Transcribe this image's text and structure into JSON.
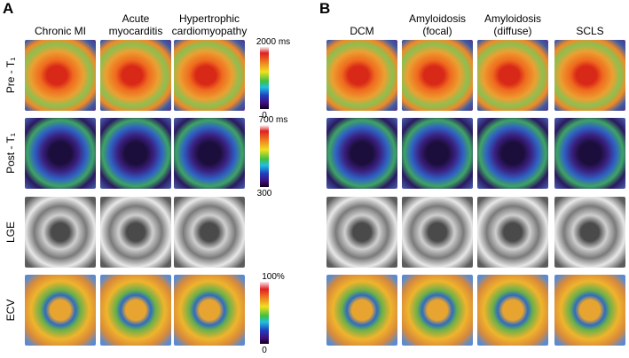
{
  "panels": [
    {
      "label": "A",
      "columns": [
        "Chronic MI",
        "Acute myocarditis",
        "Hypertrophic cardiomyopathy"
      ],
      "rows": [
        "Pre - T₁",
        "Post - T₁",
        "LGE",
        "ECV"
      ],
      "colorbars": [
        {
          "top": "2000 ms",
          "bottom": "0"
        },
        {
          "top": "700 ms",
          "bottom": "300"
        },
        {
          "top": "100%",
          "bottom": "0"
        }
      ]
    },
    {
      "label": "B",
      "columns": [
        "DCM",
        "Amyloidosis (focal)",
        "Amyloidosis (diffuse)",
        "SCLS"
      ]
    }
  ]
}
